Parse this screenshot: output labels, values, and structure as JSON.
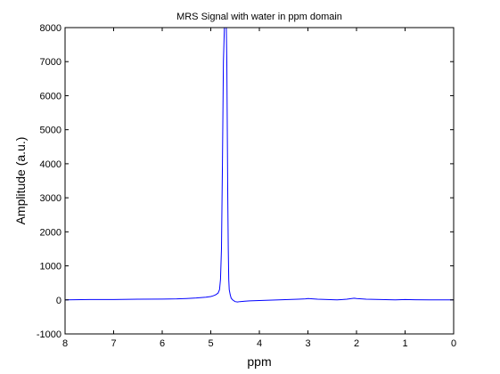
{
  "chart_data": {
    "type": "line",
    "title": "MRS Signal with water in ppm domain",
    "xlabel": "ppm",
    "ylabel": "Amplitude (a.u.)",
    "xlim": [
      0,
      8
    ],
    "x_reversed": true,
    "ylim": [
      -1000,
      8000
    ],
    "x_ticks": [
      8,
      7,
      6,
      5,
      4,
      3,
      2,
      1,
      0
    ],
    "y_ticks": [
      -1000,
      0,
      1000,
      2000,
      3000,
      4000,
      5000,
      6000,
      7000,
      8000
    ],
    "grid": false,
    "line_color": "#0000ff",
    "series": [
      {
        "x": [
          8.0,
          7.5,
          7.0,
          6.5,
          6.0,
          5.7,
          5.5,
          5.3,
          5.1,
          5.0,
          4.95,
          4.9,
          4.85,
          4.82,
          4.8,
          4.78,
          4.76,
          4.74,
          4.72,
          4.71,
          4.7,
          4.69,
          4.68,
          4.67,
          4.66,
          4.65,
          4.64,
          4.63,
          4.62,
          4.6,
          4.58,
          4.55,
          4.5,
          4.45,
          4.4,
          4.3,
          4.2,
          4.0,
          3.8,
          3.6,
          3.4,
          3.2,
          3.05,
          3.0,
          2.8,
          2.6,
          2.4,
          2.2,
          2.05,
          2.0,
          1.8,
          1.5,
          1.2,
          1.0,
          0.8,
          0.5,
          0.3,
          0.0
        ],
        "values": [
          0,
          10,
          10,
          20,
          25,
          30,
          40,
          55,
          80,
          100,
          120,
          150,
          200,
          300,
          600,
          1500,
          4000,
          7000,
          8000,
          8000,
          8000,
          8000,
          8000,
          7000,
          5000,
          3000,
          1500,
          600,
          300,
          150,
          50,
          0,
          -50,
          -60,
          -50,
          -40,
          -30,
          -20,
          -10,
          0,
          10,
          20,
          30,
          40,
          20,
          10,
          0,
          20,
          50,
          40,
          20,
          10,
          0,
          10,
          5,
          0,
          0,
          0
        ]
      }
    ]
  }
}
